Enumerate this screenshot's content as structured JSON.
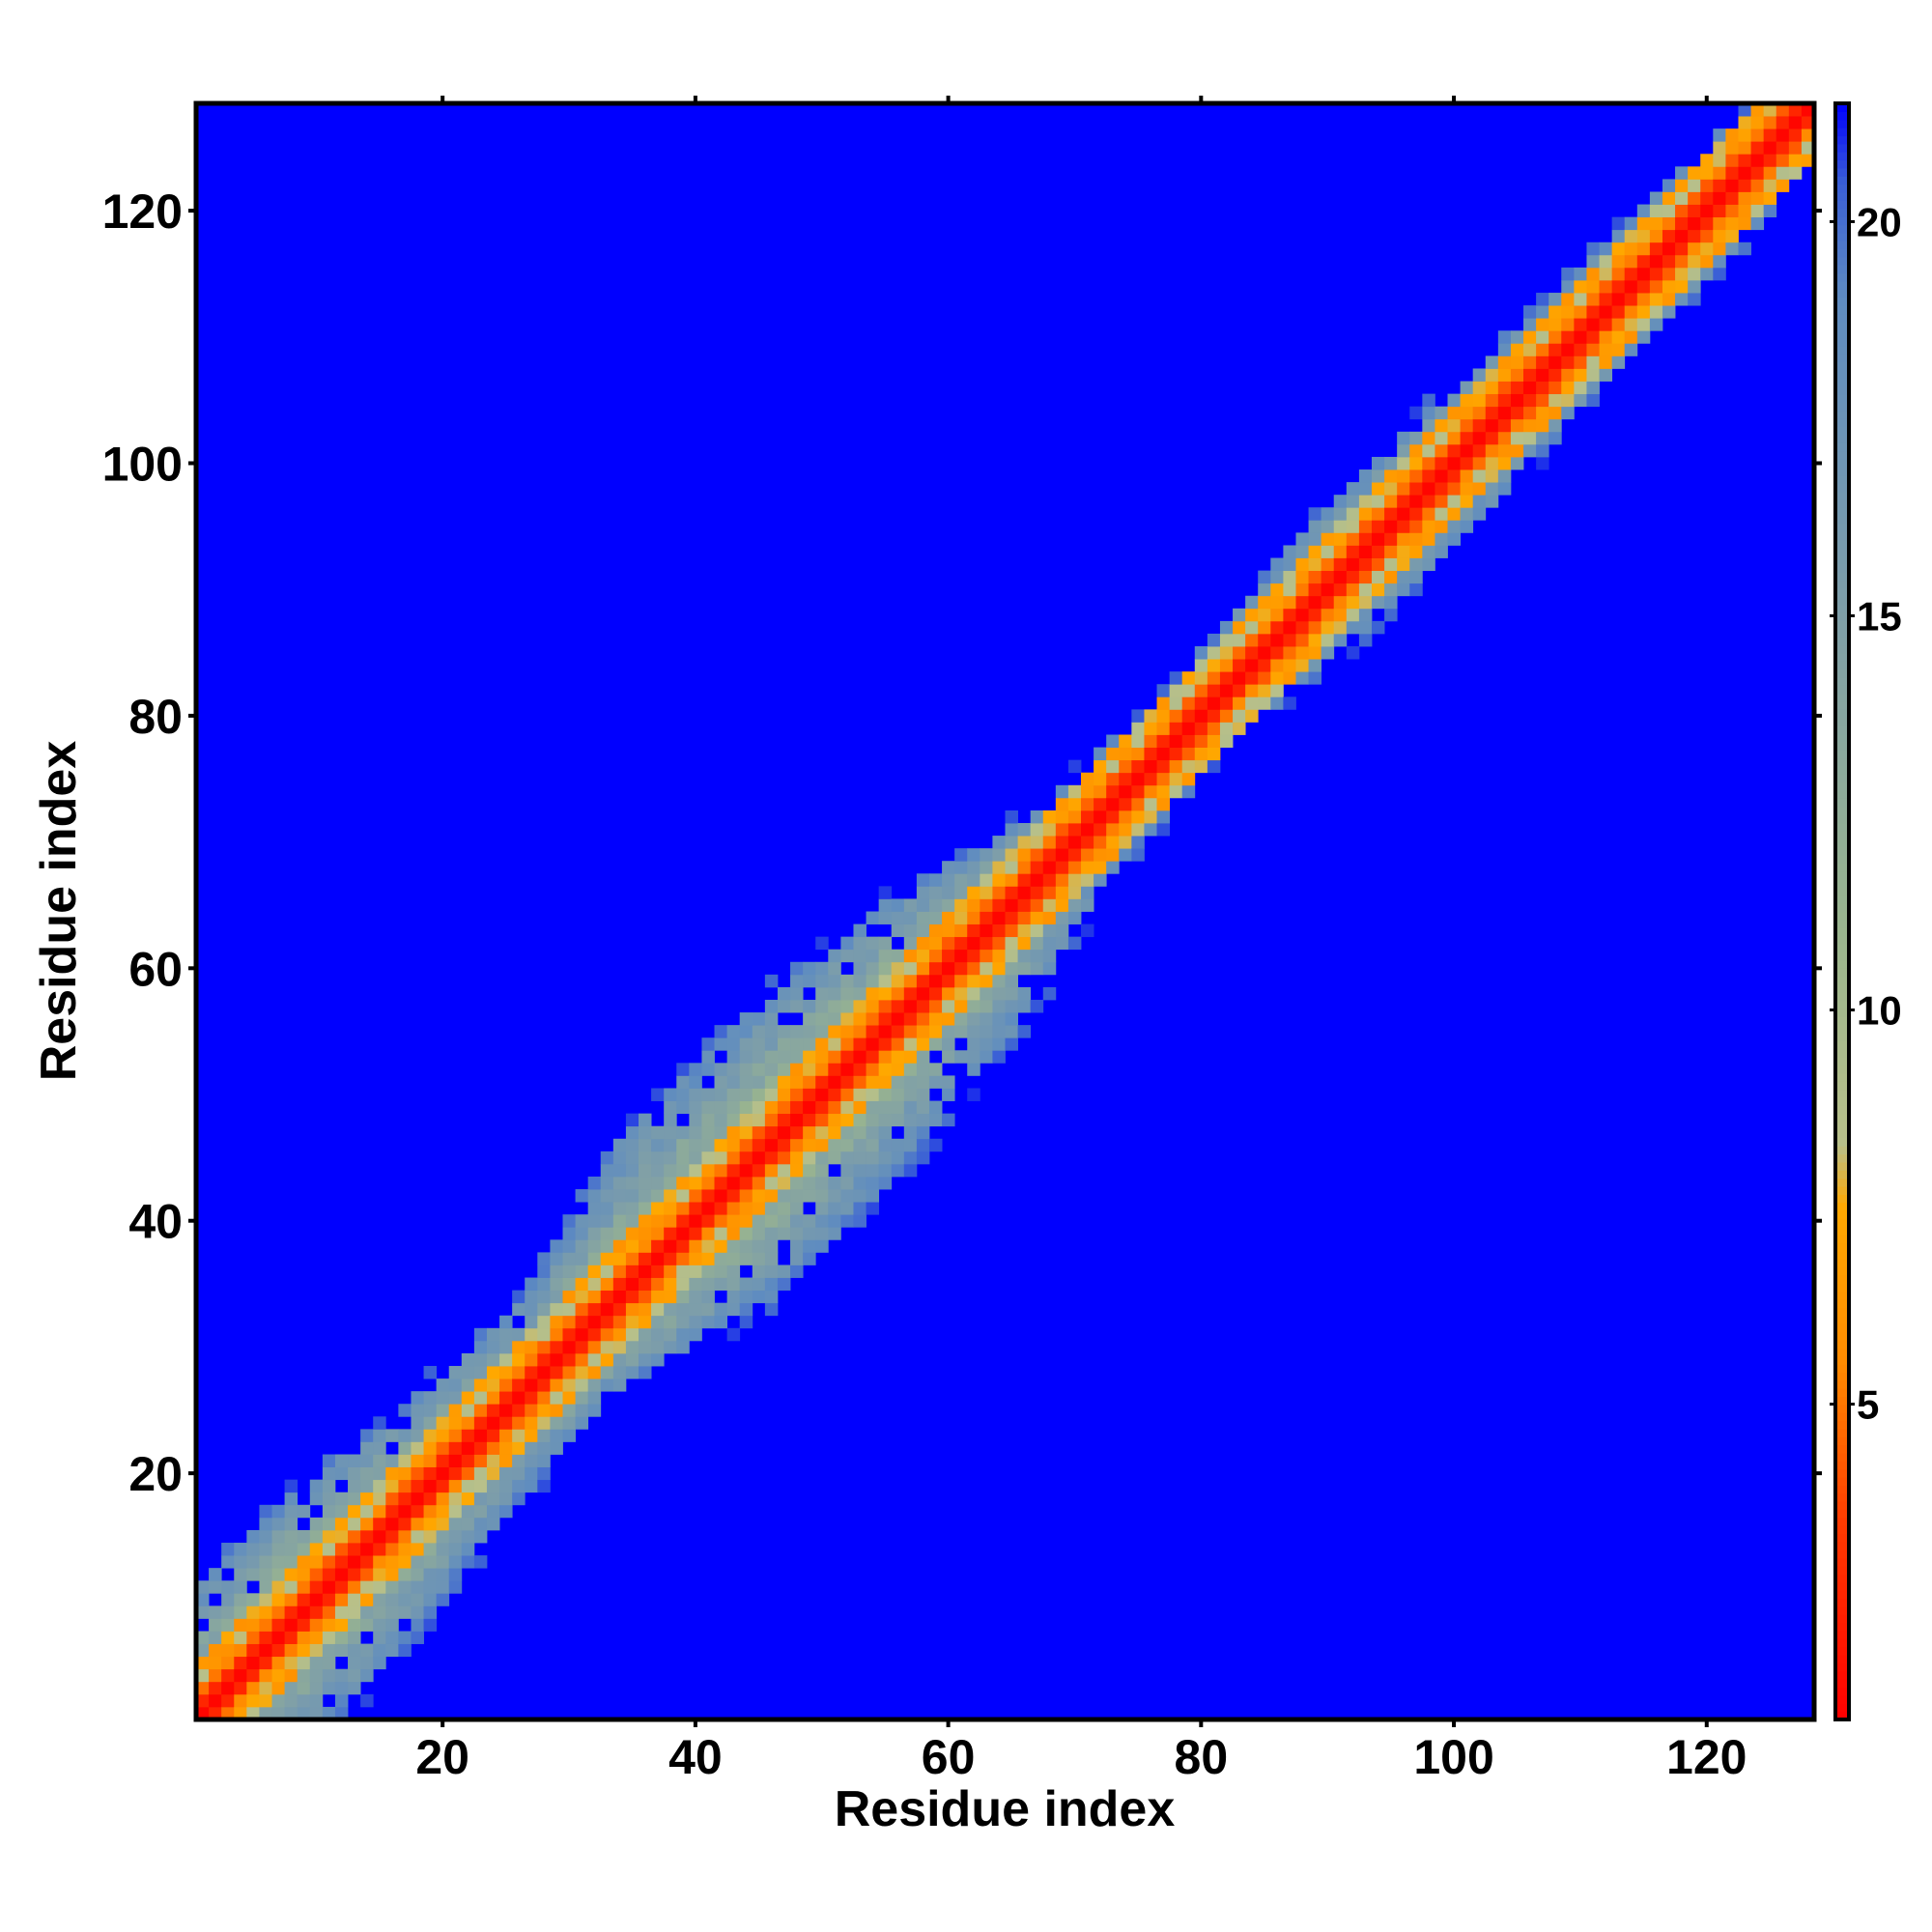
{
  "chart_data": {
    "type": "heatmap",
    "title": "",
    "xlabel": "Residue index",
    "ylabel": "Residue index",
    "xlim": [
      1,
      128
    ],
    "ylim": [
      1,
      128
    ],
    "n_residues": 128,
    "x_ticks": [
      20,
      40,
      60,
      80,
      100,
      120
    ],
    "y_ticks": [
      20,
      40,
      60,
      80,
      100,
      120
    ],
    "colorbar": {
      "range": [
        1,
        21.5
      ],
      "ticks": [
        5,
        10,
        15,
        20
      ],
      "placement": "right",
      "stops": [
        {
          "value": 1,
          "color": "#ff0000"
        },
        {
          "value": 3.5,
          "color": "#ff3b00"
        },
        {
          "value": 5.5,
          "color": "#ff8a00"
        },
        {
          "value": 7.5,
          "color": "#ffa800"
        },
        {
          "value": 8.3,
          "color": "#b8c08a"
        },
        {
          "value": 11,
          "color": "#9ab58e"
        },
        {
          "value": 15,
          "color": "#7f9fa8"
        },
        {
          "value": 19,
          "color": "#5f8cc0"
        },
        {
          "value": 20.5,
          "color": "#3a5fd6"
        },
        {
          "value": 21.5,
          "color": "#0000ff"
        }
      ]
    },
    "band_profile": {
      "description_values": "half-width of non-blue region (residues) at given mid-diagonal residue position",
      "positions": [
        1,
        10,
        20,
        30,
        40,
        50,
        60,
        70,
        80,
        90,
        100,
        110,
        120,
        128
      ],
      "halfwidth": [
        9,
        11,
        8,
        7,
        12,
        12,
        10,
        5,
        4,
        6,
        6,
        5,
        5,
        4
      ]
    },
    "background_value": 21.5,
    "grid": false
  }
}
